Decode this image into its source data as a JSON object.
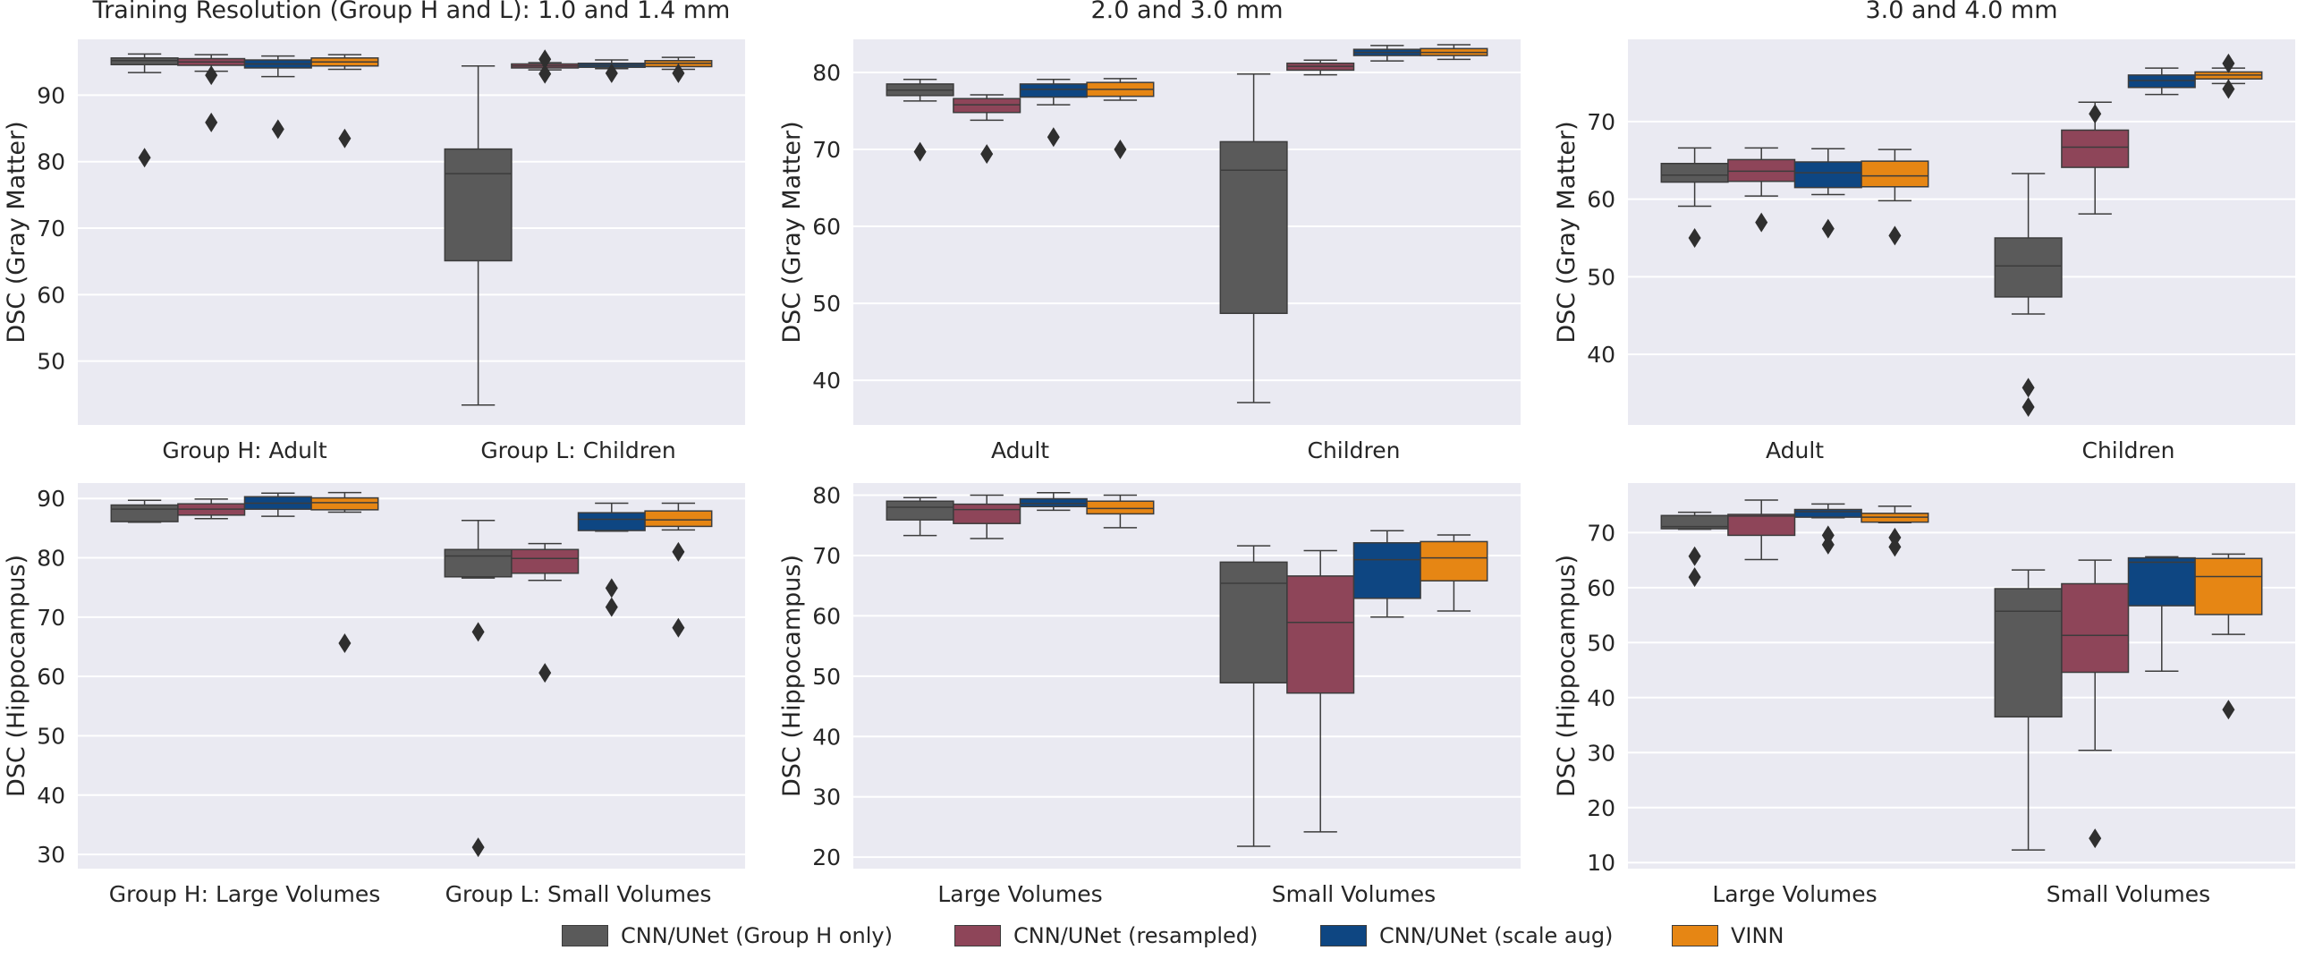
{
  "chart_data": [
    {
      "type": "box",
      "panel": "top-left",
      "title": "Training Resolution (Group H and L): 1.0 and 1.4 mm",
      "ylabel": "DSC (Gray Matter)",
      "ylim": [
        40.4,
        98.4
      ],
      "yticks": [
        50,
        60,
        70,
        80,
        90
      ],
      "categories": [
        "Group H: Adult",
        "Group L: Children"
      ],
      "series": [
        {
          "name": "CNN/UNet (Group H only)",
          "boxes": [
            {
              "whislo": 93.4,
              "q1": 94.6,
              "med": 95.2,
              "q3": 95.6,
              "whishi": 96.2,
              "fliers": [
                80.6
              ]
            },
            {
              "whislo": 43.4,
              "q1": 65.1,
              "med": 78.2,
              "q3": 81.9,
              "whishi": 94.4,
              "fliers": []
            }
          ]
        },
        {
          "name": "CNN/UNet (resampled)",
          "boxes": [
            {
              "whislo": 93.6,
              "q1": 94.5,
              "med": 95.0,
              "q3": 95.5,
              "whishi": 96.1,
              "fliers": [
                93.0,
                85.9
              ]
            },
            {
              "whislo": 93.8,
              "q1": 94.1,
              "med": 94.4,
              "q3": 94.7,
              "whishi": 94.9,
              "fliers": [
                95.4,
                93.2
              ]
            }
          ]
        },
        {
          "name": "CNN/UNet (scale aug)",
          "boxes": [
            {
              "whislo": 92.8,
              "q1": 94.1,
              "med": 94.7,
              "q3": 95.3,
              "whishi": 95.9,
              "fliers": [
                84.9
              ]
            },
            {
              "whislo": 94.0,
              "q1": 94.2,
              "med": 94.5,
              "q3": 94.8,
              "whishi": 95.3,
              "fliers": [
                93.3
              ]
            }
          ]
        },
        {
          "name": "VINN",
          "boxes": [
            {
              "whislo": 93.9,
              "q1": 94.4,
              "med": 95.0,
              "q3": 95.6,
              "whishi": 96.1,
              "fliers": [
                83.5
              ]
            },
            {
              "whislo": 93.9,
              "q1": 94.3,
              "med": 94.8,
              "q3": 95.2,
              "whishi": 95.7,
              "fliers": [
                93.3
              ]
            }
          ]
        }
      ]
    },
    {
      "type": "box",
      "panel": "top-middle",
      "title": "2.0 and 3.0 mm",
      "ylabel": "DSC (Gray Matter)",
      "ylim": [
        34.2,
        84.3
      ],
      "yticks": [
        40,
        50,
        60,
        70,
        80
      ],
      "categories": [
        "Adult",
        "Children"
      ],
      "series": [
        {
          "name": "CNN/UNet (Group H only)",
          "boxes": [
            {
              "whislo": 76.3,
              "q1": 77.0,
              "med": 77.7,
              "q3": 78.5,
              "whishi": 79.1,
              "fliers": [
                69.7
              ]
            },
            {
              "whislo": 37.1,
              "q1": 48.7,
              "med": 67.3,
              "q3": 71.0,
              "whishi": 79.8,
              "fliers": []
            }
          ]
        },
        {
          "name": "CNN/UNet (resampled)",
          "boxes": [
            {
              "whislo": 73.8,
              "q1": 74.8,
              "med": 75.8,
              "q3": 76.6,
              "whishi": 77.1,
              "fliers": [
                69.4
              ]
            },
            {
              "whislo": 79.7,
              "q1": 80.3,
              "med": 80.8,
              "q3": 81.2,
              "whishi": 81.6,
              "fliers": []
            }
          ]
        },
        {
          "name": "CNN/UNet (scale aug)",
          "boxes": [
            {
              "whislo": 75.8,
              "q1": 76.8,
              "med": 77.8,
              "q3": 78.5,
              "whishi": 79.1,
              "fliers": [
                71.6
              ]
            },
            {
              "whislo": 81.5,
              "q1": 82.2,
              "med": 82.6,
              "q3": 83.0,
              "whishi": 83.5,
              "fliers": []
            }
          ]
        },
        {
          "name": "VINN",
          "boxes": [
            {
              "whislo": 76.4,
              "q1": 76.9,
              "med": 77.8,
              "q3": 78.7,
              "whishi": 79.2,
              "fliers": [
                70.0
              ]
            },
            {
              "whislo": 81.7,
              "q1": 82.2,
              "med": 82.6,
              "q3": 83.1,
              "whishi": 83.6,
              "fliers": []
            }
          ]
        }
      ]
    },
    {
      "type": "box",
      "panel": "top-right",
      "title": "3.0 and 4.0 mm",
      "ylabel": "DSC (Gray Matter)",
      "ylim": [
        30.9,
        80.6
      ],
      "yticks": [
        40,
        50,
        60,
        70
      ],
      "categories": [
        "Adult",
        "Children"
      ],
      "series": [
        {
          "name": "CNN/UNet (Group H only)",
          "boxes": [
            {
              "whislo": 59.1,
              "q1": 62.2,
              "med": 63.1,
              "q3": 64.6,
              "whishi": 66.6,
              "fliers": [
                55.0
              ]
            },
            {
              "whislo": 45.2,
              "q1": 47.4,
              "med": 51.4,
              "q3": 55.0,
              "whishi": 63.3,
              "fliers": [
                35.7,
                33.2
              ]
            }
          ]
        },
        {
          "name": "CNN/UNet (resampled)",
          "boxes": [
            {
              "whislo": 60.4,
              "q1": 62.3,
              "med": 63.6,
              "q3": 65.1,
              "whishi": 66.6,
              "fliers": [
                57.0
              ]
            },
            {
              "whislo": 58.1,
              "q1": 64.1,
              "med": 66.7,
              "q3": 68.9,
              "whishi": 72.5,
              "fliers": [
                71.0
              ]
            }
          ]
        },
        {
          "name": "CNN/UNet (scale aug)",
          "boxes": [
            {
              "whislo": 60.6,
              "q1": 61.5,
              "med": 63.4,
              "q3": 64.8,
              "whishi": 66.5,
              "fliers": [
                56.2
              ]
            },
            {
              "whislo": 73.5,
              "q1": 74.4,
              "med": 75.3,
              "q3": 76.0,
              "whishi": 76.9,
              "fliers": []
            }
          ]
        },
        {
          "name": "VINN",
          "boxes": [
            {
              "whislo": 59.8,
              "q1": 61.6,
              "med": 63.0,
              "q3": 64.9,
              "whishi": 66.4,
              "fliers": [
                55.3
              ]
            },
            {
              "whislo": 74.9,
              "q1": 75.5,
              "med": 76.0,
              "q3": 76.4,
              "whishi": 76.9,
              "fliers": [
                77.5,
                74.2
              ]
            }
          ]
        }
      ]
    },
    {
      "type": "box",
      "panel": "bottom-left",
      "ylabel": "DSC (Hippocampus)",
      "ylim": [
        27.6,
        92.6
      ],
      "yticks": [
        30,
        40,
        50,
        60,
        70,
        80,
        90
      ],
      "categories": [
        "Group H: Large Volumes",
        "Group L: Small Volumes"
      ],
      "series": [
        {
          "name": "CNN/UNet (Group H only)",
          "boxes": [
            {
              "whislo": 86.0,
              "q1": 86.1,
              "med": 88.2,
              "q3": 88.9,
              "whishi": 89.7,
              "fliers": []
            },
            {
              "whislo": 76.6,
              "q1": 76.8,
              "med": 80.3,
              "q3": 81.4,
              "whishi": 86.3,
              "fliers": [
                67.5,
                31.2
              ]
            }
          ]
        },
        {
          "name": "CNN/UNet (resampled)",
          "boxes": [
            {
              "whislo": 86.6,
              "q1": 87.2,
              "med": 88.2,
              "q3": 89.1,
              "whishi": 89.9,
              "fliers": []
            },
            {
              "whislo": 76.2,
              "q1": 77.4,
              "med": 79.9,
              "q3": 81.4,
              "whishi": 82.4,
              "fliers": [
                60.6
              ]
            }
          ]
        },
        {
          "name": "CNN/UNet (scale aug)",
          "boxes": [
            {
              "whislo": 87.0,
              "q1": 88.2,
              "med": 89.2,
              "q3": 90.3,
              "whishi": 90.9,
              "fliers": []
            },
            {
              "whislo": 84.5,
              "q1": 84.6,
              "med": 86.5,
              "q3": 87.6,
              "whishi": 89.2,
              "fliers": [
                74.9,
                71.7
              ]
            }
          ]
        },
        {
          "name": "VINN",
          "boxes": [
            {
              "whislo": 87.7,
              "q1": 88.1,
              "med": 89.3,
              "q3": 90.1,
              "whishi": 91.0,
              "fliers": [
                65.6
              ]
            },
            {
              "whislo": 84.7,
              "q1": 85.3,
              "med": 86.4,
              "q3": 87.9,
              "whishi": 89.2,
              "fliers": [
                81.0,
                68.2
              ]
            }
          ]
        }
      ]
    },
    {
      "type": "box",
      "panel": "bottom-middle",
      "ylabel": "DSC (Hippocampus)",
      "ylim": [
        18.1,
        82.0
      ],
      "yticks": [
        20,
        30,
        40,
        50,
        60,
        70,
        80
      ],
      "categories": [
        "Large Volumes",
        "Small Volumes"
      ],
      "series": [
        {
          "name": "CNN/UNet (Group H only)",
          "boxes": [
            {
              "whislo": 73.3,
              "q1": 75.9,
              "med": 78.0,
              "q3": 79.0,
              "whishi": 79.6,
              "fliers": []
            },
            {
              "whislo": 21.8,
              "q1": 48.9,
              "med": 65.4,
              "q3": 68.9,
              "whishi": 71.6,
              "fliers": []
            }
          ]
        },
        {
          "name": "CNN/UNet (resampled)",
          "boxes": [
            {
              "whislo": 72.8,
              "q1": 75.3,
              "med": 77.6,
              "q3": 78.5,
              "whishi": 80.0,
              "fliers": []
            },
            {
              "whislo": 24.2,
              "q1": 47.2,
              "med": 58.9,
              "q3": 66.6,
              "whishi": 70.8,
              "fliers": []
            }
          ]
        },
        {
          "name": "CNN/UNet (scale aug)",
          "boxes": [
            {
              "whislo": 77.5,
              "q1": 78.1,
              "med": 78.6,
              "q3": 79.4,
              "whishi": 80.4,
              "fliers": []
            },
            {
              "whislo": 59.8,
              "q1": 62.9,
              "med": 69.3,
              "q3": 72.1,
              "whishi": 74.1,
              "fliers": []
            }
          ]
        },
        {
          "name": "VINN",
          "boxes": [
            {
              "whislo": 74.6,
              "q1": 76.9,
              "med": 77.8,
              "q3": 79.0,
              "whishi": 80.0,
              "fliers": []
            },
            {
              "whislo": 60.8,
              "q1": 65.8,
              "med": 69.6,
              "q3": 72.3,
              "whishi": 73.4,
              "fliers": []
            }
          ]
        }
      ]
    },
    {
      "type": "box",
      "panel": "bottom-right",
      "ylabel": "DSC (Hippocampus)",
      "ylim": [
        8.9,
        79.0
      ],
      "yticks": [
        10,
        20,
        30,
        40,
        50,
        60,
        70
      ],
      "categories": [
        "Large Volumes",
        "Small Volumes"
      ],
      "series": [
        {
          "name": "CNN/UNet (Group H only)",
          "boxes": [
            {
              "whislo": 70.6,
              "q1": 70.7,
              "med": 71.1,
              "q3": 73.1,
              "whishi": 73.7,
              "fliers": [
                65.7,
                61.9
              ]
            },
            {
              "whislo": 12.3,
              "q1": 36.5,
              "med": 55.7,
              "q3": 59.8,
              "whishi": 63.2,
              "fliers": []
            }
          ]
        },
        {
          "name": "CNN/UNet (resampled)",
          "boxes": [
            {
              "whislo": 65.1,
              "q1": 69.5,
              "med": 73.0,
              "q3": 73.3,
              "whishi": 75.9,
              "fliers": []
            },
            {
              "whislo": 30.4,
              "q1": 44.6,
              "med": 51.3,
              "q3": 60.7,
              "whishi": 65.0,
              "fliers": [
                14.4
              ]
            }
          ]
        },
        {
          "name": "CNN/UNet (scale aug)",
          "boxes": [
            {
              "whislo": 72.7,
              "q1": 72.8,
              "med": 73.8,
              "q3": 74.2,
              "whishi": 75.2,
              "fliers": [
                69.5,
                67.8
              ]
            },
            {
              "whislo": 44.8,
              "q1": 56.7,
              "med": 64.6,
              "q3": 65.4,
              "whishi": 65.6,
              "fliers": []
            }
          ]
        },
        {
          "name": "VINN",
          "boxes": [
            {
              "whislo": 71.8,
              "q1": 71.9,
              "med": 72.8,
              "q3": 73.5,
              "whishi": 74.8,
              "fliers": [
                69.1,
                67.4
              ]
            },
            {
              "whislo": 51.5,
              "q1": 55.1,
              "med": 62.0,
              "q3": 65.3,
              "whishi": 66.1,
              "fliers": [
                37.8
              ]
            }
          ]
        }
      ]
    }
  ],
  "style": {
    "plot_background": "#eaeaf2",
    "grid_color": "#ffffff",
    "text_color": "#262626",
    "edge_color": "#3c3c3c",
    "flier_color": "#2f2f2f",
    "series_colors": [
      "#5a5a5a",
      "#8e4559",
      "#0e4682",
      "#e68614"
    ]
  },
  "legend": {
    "position": "bottom-center",
    "items": [
      {
        "label": "CNN/UNet (Group H only)",
        "color": "#5a5a5a"
      },
      {
        "label": "CNN/UNet (resampled)",
        "color": "#8e4559"
      },
      {
        "label": "CNN/UNet (scale aug)",
        "color": "#0e4682"
      },
      {
        "label": "VINN",
        "color": "#e68614"
      }
    ]
  }
}
